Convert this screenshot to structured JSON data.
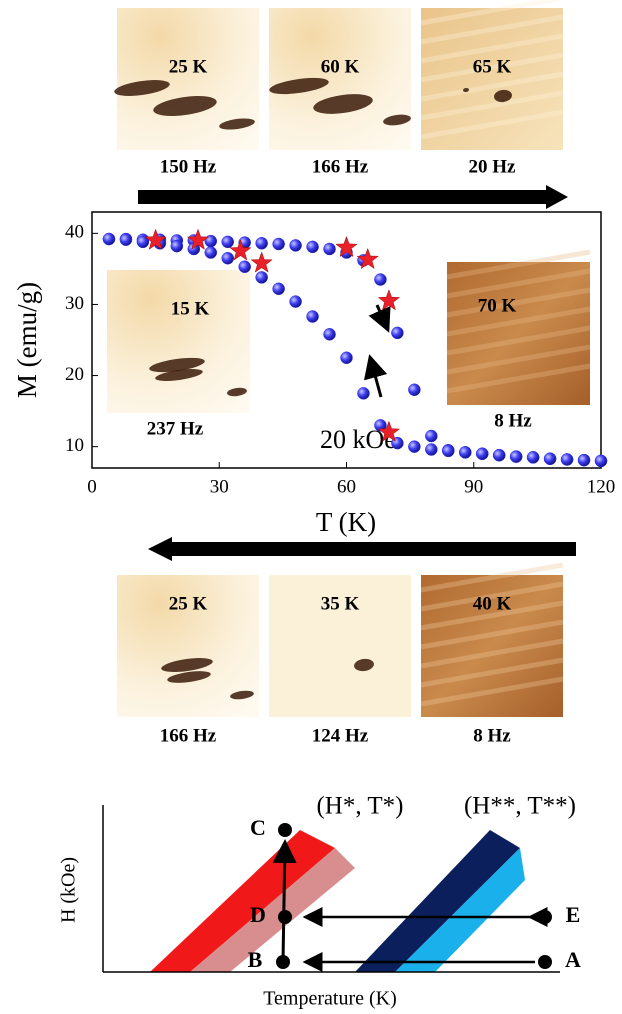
{
  "top_images": [
    {
      "temperature": "25 K",
      "frequency": "150 Hz"
    },
    {
      "temperature": "60 K",
      "frequency": "166 Hz"
    },
    {
      "temperature": "65 K",
      "frequency": "20 Hz"
    }
  ],
  "chart_data": {
    "type": "scatter",
    "x_label": "T (K)",
    "y_label": "M (emu/g)",
    "annotation": "20 kOe",
    "xlim": [
      0,
      120
    ],
    "xticks": [
      0,
      30,
      60,
      90,
      120
    ],
    "ylim": [
      7,
      43
    ],
    "yticks": [
      10,
      20,
      30,
      40
    ],
    "x": [
      4,
      8,
      12,
      16,
      20,
      24,
      28,
      32,
      36,
      40,
      44,
      48,
      52,
      56,
      60,
      64,
      68,
      72,
      76,
      80,
      84,
      88,
      92,
      96,
      100,
      104,
      108,
      112,
      116,
      120
    ],
    "series": [
      {
        "color": "#2a2ae6",
        "values": [
          39.2,
          39.2,
          39.1,
          39.1,
          39.0,
          39.0,
          38.9,
          38.8,
          38.7,
          38.6,
          38.5,
          38.3,
          38.1,
          37.8,
          37.3,
          36.2,
          33.5,
          26,
          18,
          11.5,
          9.5,
          9.2,
          9.0,
          8.8,
          8.6,
          8.5,
          8.3,
          8.2,
          8.1,
          8.0
        ]
      },
      {
        "color": "#2a2ae6",
        "values": [
          39.2,
          39.1,
          38.8,
          38.6,
          38.2,
          37.8,
          37.3,
          36.5,
          35.3,
          33.8,
          32.2,
          30.4,
          28.3,
          25.8,
          22.5,
          17.5,
          13,
          10.5,
          10,
          9.6,
          9.4,
          9.2,
          9.0,
          8.8,
          8.6,
          8.5,
          8.3,
          8.2,
          8.1,
          8.0
        ]
      }
    ],
    "markers": {
      "color": "#e8202a",
      "x": [
        15,
        25,
        35,
        40,
        60,
        65,
        70,
        70
      ],
      "y": [
        39,
        39,
        37.5,
        35.8,
        38,
        36.3,
        30.5,
        12
      ]
    },
    "insets": [
      {
        "temperature": "15 K",
        "frequency": "237 Hz"
      },
      {
        "temperature": "70 K",
        "frequency": "8 Hz"
      }
    ]
  },
  "bottom_images": [
    {
      "temperature": "25 K",
      "frequency": "166 Hz"
    },
    {
      "temperature": "35 K",
      "frequency": "124 Hz"
    },
    {
      "temperature": "40 K",
      "frequency": "8 Hz"
    }
  ],
  "phase_diagram": {
    "y_label": "H (kOe)",
    "x_label": "Temperature (K)",
    "region_labels": [
      "(H*, T*)",
      "(H**, T**)"
    ],
    "points": [
      "C",
      "D",
      "B",
      "E",
      "A"
    ]
  }
}
